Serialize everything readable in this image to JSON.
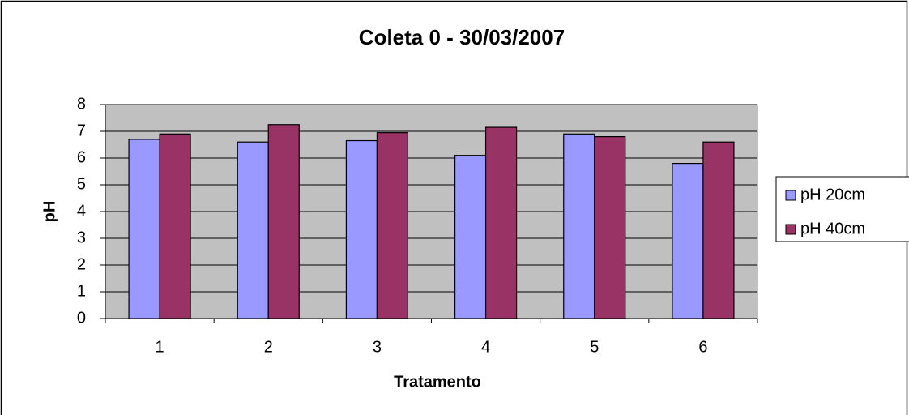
{
  "chart_data": {
    "type": "bar",
    "title": "Coleta 0 - 30/03/2007",
    "x_label": "Tratamento",
    "y_label": "pH",
    "categories": [
      "1",
      "2",
      "3",
      "4",
      "5",
      "6"
    ],
    "series": [
      {
        "name": "pH 20cm",
        "color": "#9999ff",
        "values": [
          6.7,
          6.6,
          6.65,
          6.1,
          6.9,
          5.8
        ]
      },
      {
        "name": "pH 40cm",
        "color": "#993366",
        "values": [
          6.9,
          7.25,
          6.95,
          7.15,
          6.8,
          6.6
        ]
      }
    ],
    "ylim": [
      0,
      8
    ],
    "yticks": [
      0,
      1,
      2,
      3,
      4,
      5,
      6,
      7,
      8
    ],
    "grid": true,
    "legend": "right"
  }
}
